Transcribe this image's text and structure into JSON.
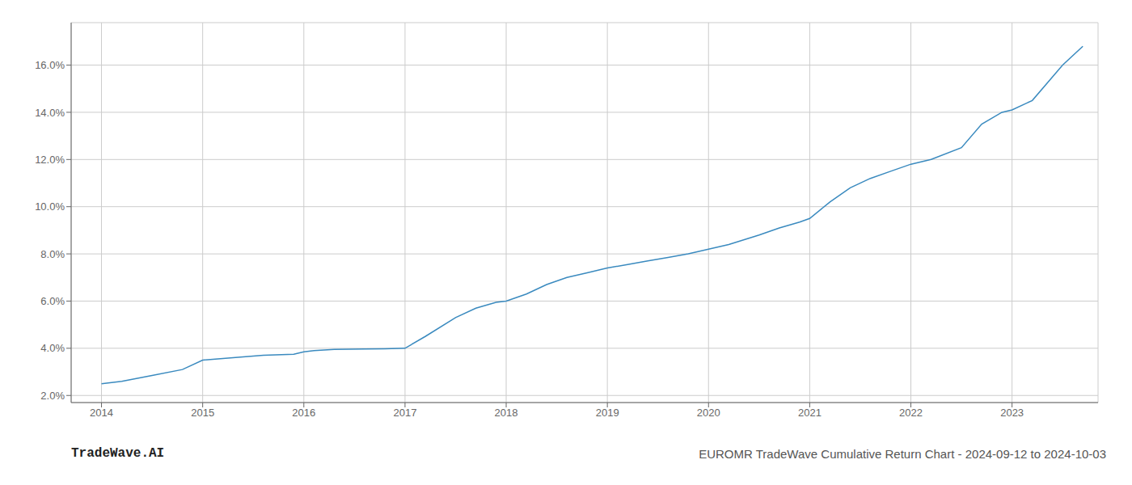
{
  "chart_data": {
    "type": "line",
    "title": "EUROMR TradeWave Cumulative Return Chart - 2024-09-12 to 2024-10-03",
    "annotations": [
      "TradeWave.AI"
    ],
    "x": [
      2014.0,
      2014.2,
      2014.5,
      2014.8,
      2015.0,
      2015.3,
      2015.6,
      2015.9,
      2016.0,
      2016.1,
      2016.3,
      2016.6,
      2016.8,
      2017.0,
      2017.2,
      2017.5,
      2017.7,
      2017.9,
      2018.0,
      2018.2,
      2018.4,
      2018.6,
      2018.8,
      2019.0,
      2019.2,
      2019.4,
      2019.6,
      2019.8,
      2020.0,
      2020.2,
      2020.5,
      2020.7,
      2020.9,
      2021.0,
      2021.2,
      2021.4,
      2021.6,
      2021.8,
      2022.0,
      2022.2,
      2022.5,
      2022.7,
      2022.9,
      2023.0,
      2023.2,
      2023.5,
      2023.7
    ],
    "values": [
      2.5,
      2.6,
      2.85,
      3.1,
      3.5,
      3.6,
      3.7,
      3.75,
      3.85,
      3.9,
      3.95,
      3.97,
      3.98,
      4.0,
      4.5,
      5.3,
      5.7,
      5.95,
      6.0,
      6.3,
      6.7,
      7.0,
      7.2,
      7.4,
      7.55,
      7.7,
      7.85,
      8.0,
      8.2,
      8.4,
      8.8,
      9.1,
      9.35,
      9.5,
      10.2,
      10.8,
      11.2,
      11.5,
      11.8,
      12.0,
      12.5,
      13.5,
      14.0,
      14.1,
      14.5,
      16.0,
      16.8
    ],
    "color": "#3a8abf",
    "xlim": [
      2013.7,
      2023.85
    ],
    "ylim": [
      1.7,
      17.8
    ],
    "xticks": [
      2014,
      2015,
      2016,
      2017,
      2018,
      2019,
      2020,
      2021,
      2022,
      2023
    ],
    "yticks": [
      {
        "value": 2.0,
        "label": "2.0%"
      },
      {
        "value": 4.0,
        "label": "4.0%"
      },
      {
        "value": 6.0,
        "label": "6.0%"
      },
      {
        "value": 8.0,
        "label": "8.0%"
      },
      {
        "value": 10.0,
        "label": "10.0%"
      },
      {
        "value": 12.0,
        "label": "12.0%"
      },
      {
        "value": 14.0,
        "label": "14.0%"
      },
      {
        "value": 16.0,
        "label": "16.0%"
      }
    ],
    "grid": true
  }
}
